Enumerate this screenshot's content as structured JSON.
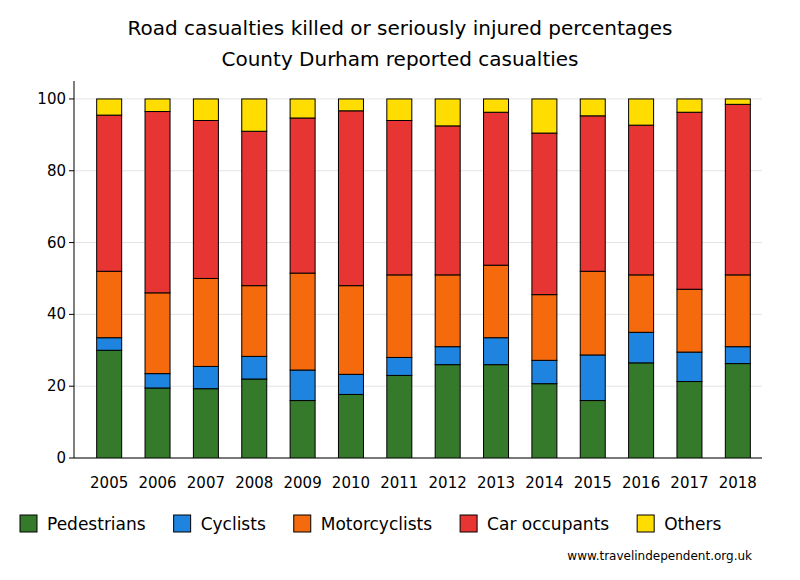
{
  "chart_data": {
    "type": "bar",
    "stacked": true,
    "title": "Road casualties killed or seriously injured percentages",
    "subtitle": "County Durham reported casualties",
    "annotation": "www.travelindependent.org.uk",
    "categories": [
      "2005",
      "2006",
      "2007",
      "2008",
      "2009",
      "2010",
      "2011",
      "2012",
      "2013",
      "2014",
      "2015",
      "2016",
      "2017",
      "2018"
    ],
    "series": [
      {
        "name": "Pedestrians",
        "color": "#357a2b",
        "values": [
          30,
          19.5,
          19.3,
          22,
          16,
          17.7,
          23,
          26,
          26,
          20.7,
          16,
          26.5,
          21.3,
          26.3
        ]
      },
      {
        "name": "Cyclists",
        "color": "#1f84e0",
        "values": [
          3.5,
          4,
          6.2,
          6.3,
          8.5,
          5.6,
          5,
          5,
          7.5,
          6.5,
          12.7,
          8.5,
          8.2,
          4.7
        ]
      },
      {
        "name": "Motorcyclists",
        "color": "#f56a0c",
        "values": [
          18.5,
          22.5,
          24.5,
          19.7,
          27,
          24.7,
          23,
          20,
          20.2,
          18.3,
          23.3,
          16,
          17.5,
          20
        ]
      },
      {
        "name": "Car occupants",
        "color": "#e63532",
        "values": [
          43.5,
          50.5,
          44,
          43,
          43.2,
          48.7,
          43,
          41.5,
          42.6,
          45,
          43.3,
          41.7,
          49.3,
          47.5
        ]
      },
      {
        "name": "Others",
        "color": "#ffdd00",
        "values": [
          4.5,
          3.5,
          6,
          9,
          5.3,
          3.3,
          6,
          7.5,
          3.7,
          9.5,
          4.7,
          7.3,
          3.7,
          1.5
        ]
      }
    ],
    "ylim": [
      0,
      105
    ],
    "yticks": [
      0,
      20,
      40,
      60,
      80,
      100
    ],
    "grid": true,
    "legend": "bottom"
  }
}
